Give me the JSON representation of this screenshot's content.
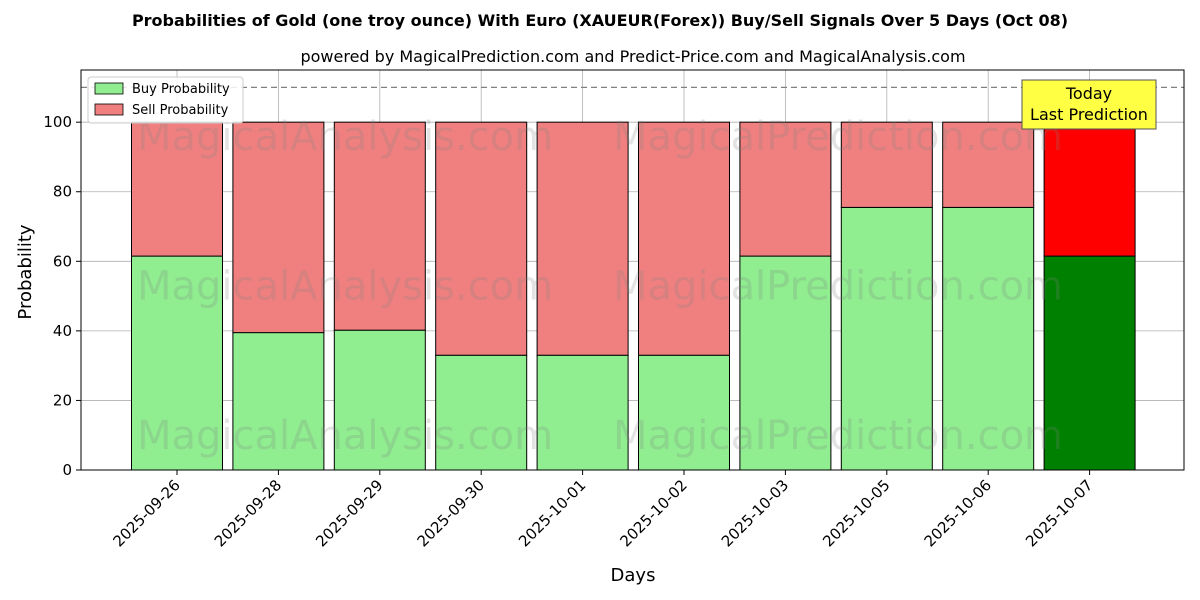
{
  "chart_data": {
    "type": "bar",
    "title": "Probabilities of Gold (one troy ounce) With Euro (XAUEUR(Forex)) Buy/Sell Signals Over 5 Days (Oct 08)",
    "subtitle": "powered by MagicalPrediction.com and Predict-Price.com and MagicalAnalysis.com",
    "xlabel": "Days",
    "ylabel": "Probability",
    "ylim": [
      0,
      115
    ],
    "yticks": [
      0,
      20,
      40,
      60,
      80,
      100
    ],
    "categories": [
      "2025-09-26",
      "2025-09-28",
      "2025-09-29",
      "2025-09-30",
      "2025-10-01",
      "2025-10-02",
      "2025-10-03",
      "2025-10-05",
      "2025-10-06",
      "2025-10-07"
    ],
    "series": [
      {
        "name": "Buy Probability",
        "values": [
          61.5,
          39.5,
          40.2,
          33,
          33,
          33,
          61.5,
          75.5,
          75.5,
          61.5
        ]
      },
      {
        "name": "Sell Probability",
        "values": [
          38.5,
          60.5,
          59.8,
          67,
          67,
          67,
          38.5,
          24.5,
          24.5,
          38.5
        ]
      }
    ],
    "reference_line": 110,
    "annotation": {
      "line1": "Today",
      "line2": "Last Prediction"
    },
    "legend_position": "top-left",
    "grid": true,
    "watermarks": [
      "MagicalAnalysis.com",
      "MagicalPrediction.com"
    ],
    "colors": {
      "buy": "#90EE90",
      "sell": "#F08080",
      "buy_last": "#008000",
      "sell_last": "#FF0000",
      "annotation_bg": "#FFFF44",
      "grid": "#b0b0b0"
    }
  }
}
